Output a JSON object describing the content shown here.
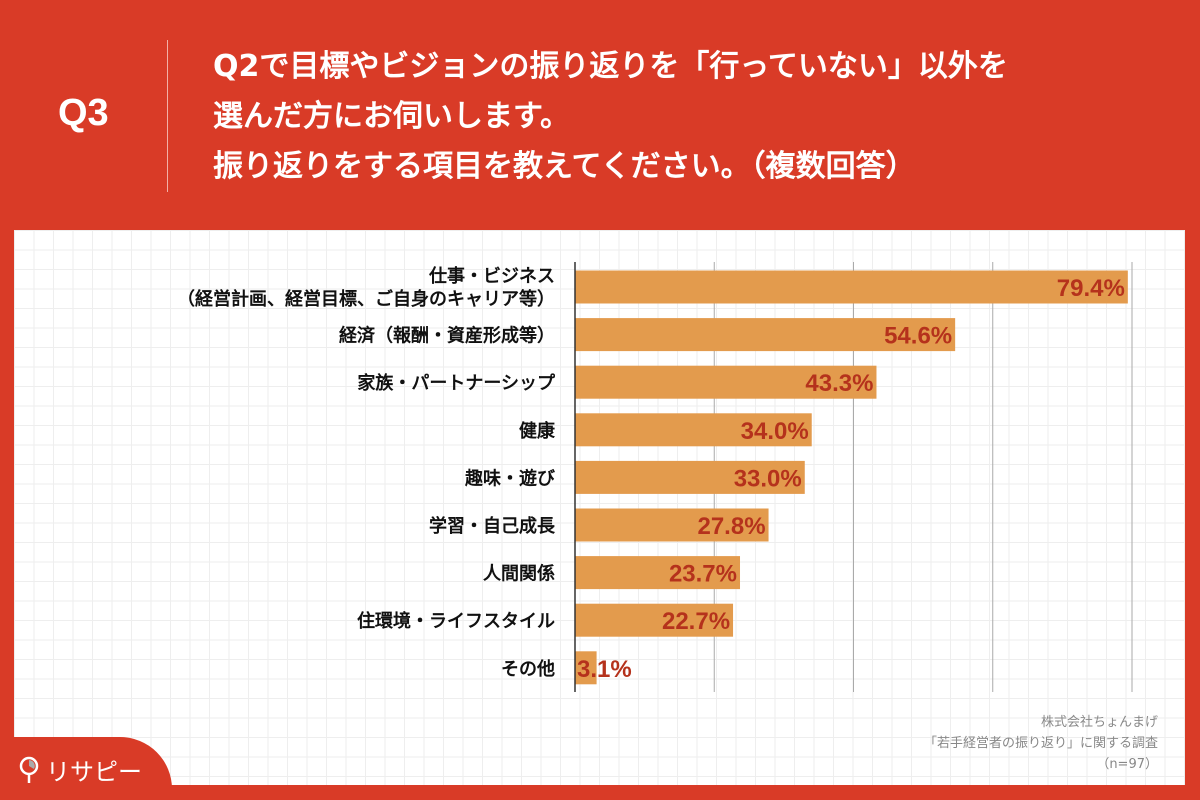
{
  "header": {
    "q_label": "Q3",
    "title_lines": [
      "Q2で目標やビジョンの振り返りを「行っていない」以外を",
      "選んだ方にお伺いします。",
      "振り返りをする項目を教えてください。（複数回答）"
    ]
  },
  "chart_data": {
    "type": "bar",
    "orientation": "horizontal",
    "categories": [
      [
        "仕事・ビジネス",
        "（経営計画、経営目標、ご自身のキャリア等）"
      ],
      [
        "経済（報酬・資産形成等）"
      ],
      [
        "家族・パートナーシップ"
      ],
      [
        "健康"
      ],
      [
        "趣味・遊び"
      ],
      [
        "学習・自己成長"
      ],
      [
        "人間関係"
      ],
      [
        "住環境・ライフスタイル"
      ],
      [
        "その他"
      ]
    ],
    "values": [
      79.4,
      54.6,
      43.3,
      34.0,
      33.0,
      27.8,
      23.7,
      22.7,
      3.1
    ],
    "value_labels": [
      "79.4%",
      "54.6%",
      "43.3%",
      "34.0%",
      "33.0%",
      "27.8%",
      "23.7%",
      "22.7%",
      "3.1%"
    ],
    "xlim": [
      0,
      80
    ],
    "grid": true,
    "colors": {
      "bar": "#e39b4d",
      "label": "#b5321c"
    }
  },
  "footnote": {
    "lines": [
      "株式会社ちょんまげ",
      "「若手経営者の振り返り」に関する調査",
      "（n=97）"
    ]
  },
  "logo": {
    "text": "リサピー"
  }
}
